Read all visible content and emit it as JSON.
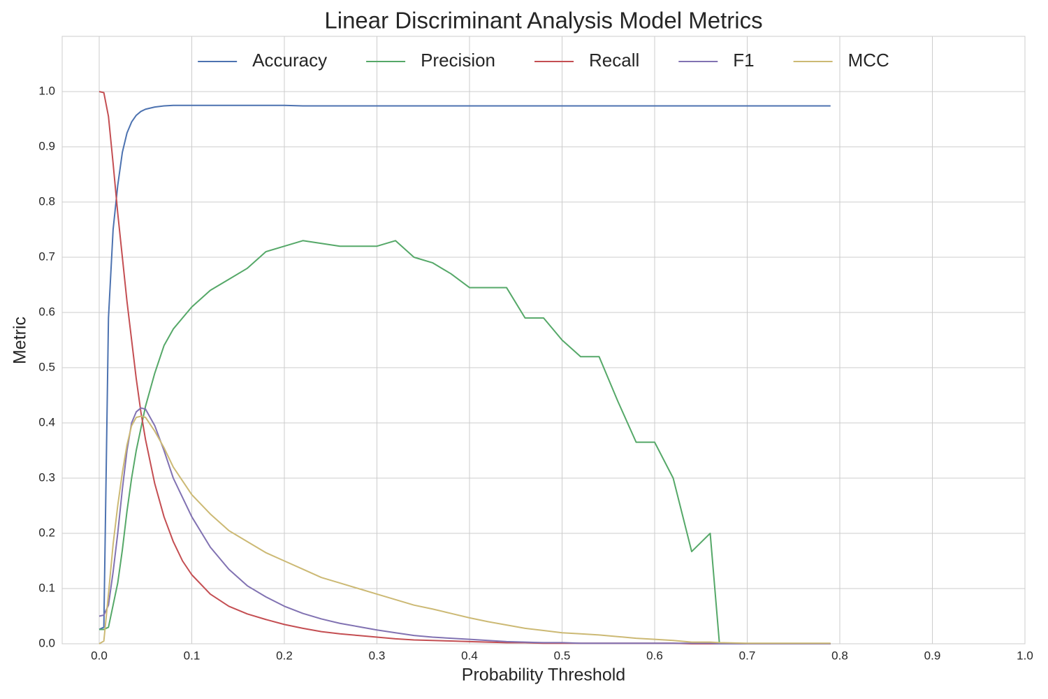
{
  "chart_data": {
    "type": "line",
    "title": "Linear Discriminant Analysis Model Metrics",
    "x_label": "Probability Threshold",
    "y_label": "Metric",
    "grid": true,
    "legend": "top",
    "xlim": [
      -0.04,
      1.0
    ],
    "ylim": [
      0,
      1.1
    ],
    "xticks": [
      {
        "value": 0,
        "label": "0.0"
      },
      0.1,
      0.2,
      0.3,
      0.4,
      0.5,
      0.6,
      0.7,
      0.8,
      0.9,
      {
        "value": 1,
        "label": "1.0"
      }
    ],
    "yticks": [
      {
        "value": 0,
        "label": "0.0"
      },
      0.1,
      0.2,
      0.3,
      0.4,
      0.5,
      0.6,
      0.7,
      0.8,
      0.9,
      {
        "value": 1,
        "label": "1.0"
      }
    ],
    "x": [
      0,
      0.005,
      0.01,
      0.015,
      0.02,
      0.025,
      0.03,
      0.035,
      0.04,
      0.045,
      0.05,
      0.06,
      0.07,
      0.08,
      0.09,
      0.1,
      0.12,
      0.14,
      0.16,
      0.18,
      0.2,
      0.22,
      0.24,
      0.26,
      0.28,
      0.3,
      0.32,
      0.34,
      0.36,
      0.38,
      0.4,
      0.42,
      0.44,
      0.46,
      0.48,
      0.5,
      0.52,
      0.54,
      0.56,
      0.58,
      0.6,
      0.62,
      0.64,
      0.66,
      0.67,
      0.7,
      0.75,
      0.79
    ],
    "series": [
      {
        "name": "Accuracy",
        "color": "#4c72b0",
        "values": [
          0.026,
          0.03,
          0.59,
          0.75,
          0.83,
          0.89,
          0.925,
          0.945,
          0.957,
          0.964,
          0.968,
          0.972,
          0.974,
          0.975,
          0.975,
          0.975,
          0.975,
          0.975,
          0.975,
          0.975,
          0.975,
          0.974,
          0.974,
          0.974,
          0.974,
          0.974,
          0.974,
          0.974,
          0.974,
          0.974,
          0.974,
          0.974,
          0.974,
          0.974,
          0.974,
          0.974,
          0.974,
          0.974,
          0.974,
          0.974,
          0.974,
          0.974,
          0.974,
          0.974,
          0.974,
          0.974,
          0.974,
          0.974
        ]
      },
      {
        "name": "Precision",
        "color": "#55a868",
        "values": [
          0.026,
          0.026,
          0.03,
          0.07,
          0.11,
          0.17,
          0.24,
          0.3,
          0.35,
          0.39,
          0.43,
          0.49,
          0.54,
          0.57,
          0.59,
          0.61,
          0.64,
          0.66,
          0.68,
          0.71,
          0.72,
          0.73,
          0.725,
          0.72,
          0.72,
          0.72,
          0.73,
          0.7,
          0.69,
          0.67,
          0.645,
          0.645,
          0.645,
          0.59,
          0.59,
          0.55,
          0.52,
          0.52,
          0.44,
          0.365,
          0.365,
          0.3,
          0.167,
          0.2,
          0,
          0,
          0,
          0
        ]
      },
      {
        "name": "Recall",
        "color": "#c44e52",
        "values": [
          1.0,
          0.998,
          0.955,
          0.87,
          0.78,
          0.7,
          0.62,
          0.55,
          0.48,
          0.42,
          0.37,
          0.29,
          0.23,
          0.185,
          0.15,
          0.125,
          0.09,
          0.068,
          0.054,
          0.044,
          0.035,
          0.028,
          0.022,
          0.018,
          0.015,
          0.012,
          0.009,
          0.007,
          0.006,
          0.005,
          0.004,
          0.003,
          0.002,
          0.002,
          0.001,
          0.001,
          0.001,
          0.001,
          0.001,
          0.001,
          0.001,
          0.001,
          0,
          0,
          0,
          0,
          0,
          0
        ]
      },
      {
        "name": "F1",
        "color": "#8172b2",
        "values": [
          0.05,
          0.052,
          0.07,
          0.13,
          0.2,
          0.28,
          0.35,
          0.4,
          0.42,
          0.427,
          0.425,
          0.395,
          0.35,
          0.3,
          0.265,
          0.23,
          0.175,
          0.135,
          0.105,
          0.085,
          0.068,
          0.055,
          0.045,
          0.037,
          0.031,
          0.025,
          0.02,
          0.015,
          0.012,
          0.01,
          0.008,
          0.006,
          0.004,
          0.003,
          0.002,
          0.002,
          0.001,
          0.001,
          0.001,
          0.001,
          0.001,
          0.001,
          0.001,
          0.001,
          0,
          0,
          0,
          0
        ]
      },
      {
        "name": "MCC",
        "color": "#ccb974",
        "values": [
          0,
          0.005,
          0.09,
          0.18,
          0.25,
          0.31,
          0.36,
          0.395,
          0.41,
          0.412,
          0.41,
          0.385,
          0.355,
          0.32,
          0.295,
          0.27,
          0.235,
          0.205,
          0.185,
          0.165,
          0.15,
          0.135,
          0.12,
          0.11,
          0.1,
          0.09,
          0.08,
          0.07,
          0.063,
          0.055,
          0.047,
          0.04,
          0.034,
          0.028,
          0.024,
          0.02,
          0.018,
          0.016,
          0.013,
          0.01,
          0.008,
          0.006,
          0.003,
          0.003,
          0.002,
          0.001,
          0.001,
          0.001
        ]
      }
    ]
  }
}
